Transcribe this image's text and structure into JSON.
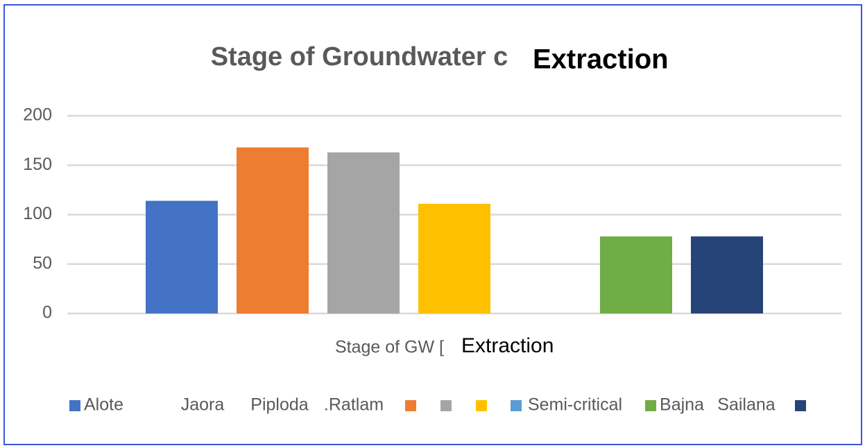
{
  "chart_data": {
    "type": "bar",
    "title": "Stage of Groundwater c",
    "title_overlay": "Extraction",
    "x_label": "Stage of GW [",
    "x_label_overlay": "Extraction",
    "categories": [
      null
    ],
    "series": [
      {
        "name": "Alote",
        "color": "#4472c4",
        "values": [
          114
        ]
      },
      {
        "name": "Jaora",
        "color": "#ed7d31",
        "values": [
          168
        ]
      },
      {
        "name": "Piploda",
        "color": "#a5a5a5",
        "values": [
          163
        ]
      },
      {
        "name": ".Ratlam",
        "color": "#ffc000",
        "values": [
          111
        ]
      },
      {
        "name": "Semi-critical",
        "color": "#5b9bd5",
        "values": [
          null
        ]
      },
      {
        "name": "Bajna",
        "color": "#70ad47",
        "values": [
          78
        ]
      },
      {
        "name": "Sailana",
        "color": "#264478",
        "values": [
          78
        ]
      }
    ],
    "ylim": [
      0,
      200
    ],
    "yticks": [
      0,
      50,
      100,
      150,
      200
    ],
    "grid": true,
    "legend": "bottom"
  }
}
